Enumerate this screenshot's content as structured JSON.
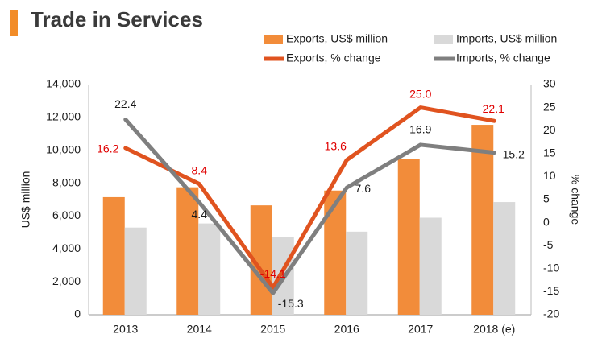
{
  "chart_data": {
    "type": "bar",
    "title": "Trade in Services",
    "categories": [
      "2013",
      "2014",
      "2015",
      "2016",
      "2017",
      "2018 (e)"
    ],
    "ylabel": "US$ million",
    "y2label": "% change",
    "ylim": [
      0,
      14000
    ],
    "y2lim": [
      -20,
      30
    ],
    "yticks": [
      "0",
      "2,000",
      "4,000",
      "6,000",
      "8,000",
      "10,000",
      "12,000",
      "14,000"
    ],
    "y2ticks": [
      "-20",
      "-15",
      "-10",
      "-5",
      "0",
      "5",
      "10",
      "15",
      "20",
      "25",
      "30"
    ],
    "series": [
      {
        "name": "Exports, US$ million",
        "type": "bar",
        "axis": "left",
        "color": "#F28C3A",
        "values": [
          7150,
          7750,
          6650,
          7550,
          9450,
          11550
        ]
      },
      {
        "name": "Imports, US$ million",
        "type": "bar",
        "axis": "left",
        "color": "#D9D9D9",
        "values": [
          5300,
          5550,
          4700,
          5050,
          5900,
          6850
        ]
      },
      {
        "name": "Exports, % change",
        "type": "line",
        "axis": "right",
        "color": "#E0531F",
        "label_color": "#E00000",
        "values": [
          16.2,
          8.4,
          -14.1,
          13.6,
          25.0,
          22.1
        ],
        "labels": [
          "16.2",
          "8.4",
          "-14.1",
          "13.6",
          "25.0",
          "22.1"
        ]
      },
      {
        "name": "Imports, % change",
        "type": "line",
        "axis": "right",
        "color": "#7F7F7F",
        "label_color": "#1a1a1a",
        "values": [
          22.4,
          4.4,
          -15.3,
          7.6,
          16.9,
          15.2
        ],
        "labels": [
          "22.4",
          "4.4",
          "-15.3",
          "7.6",
          "16.9",
          "15.2"
        ]
      }
    ],
    "legend_position": "top-right"
  }
}
